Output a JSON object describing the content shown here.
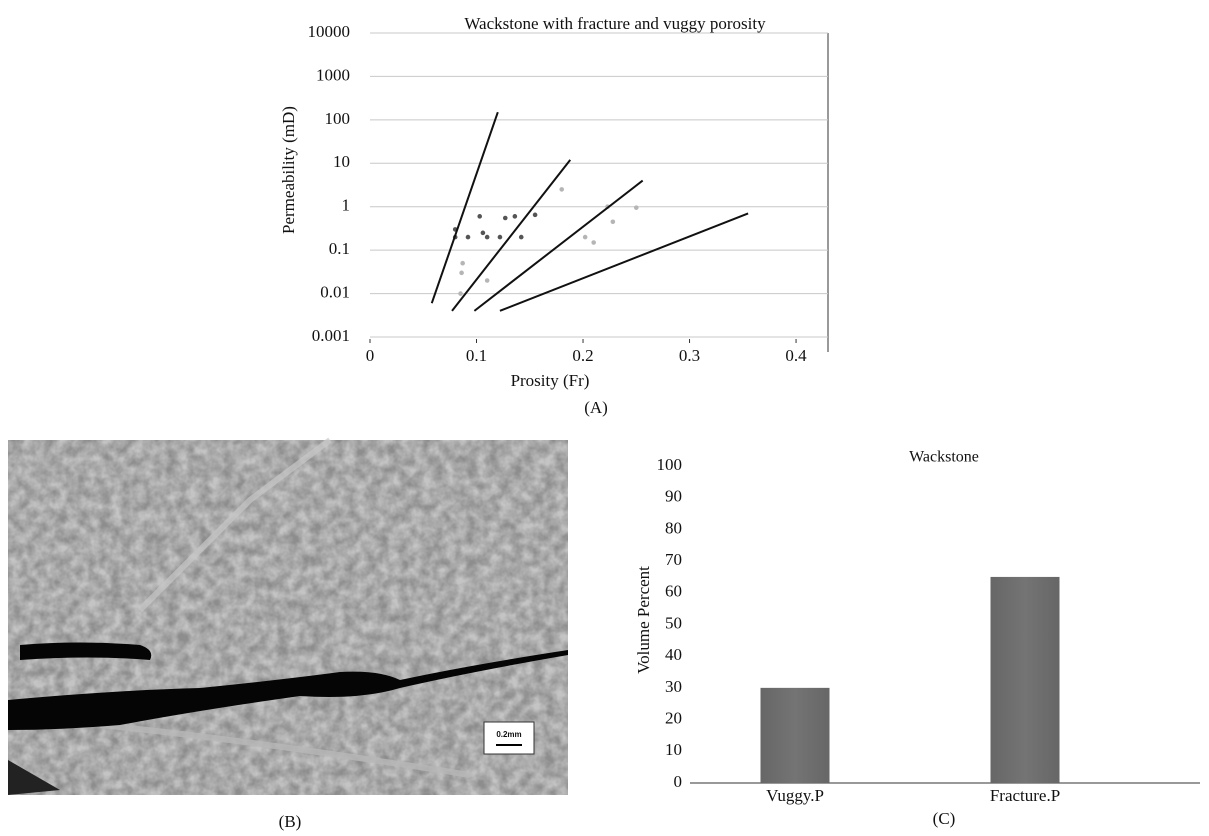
{
  "chart_data": [
    {
      "type": "scatter-lines",
      "title": "Wackstone with fracture and vuggy porosity",
      "x_label": "Prosity (Fr)",
      "y_label": "Permeability (mD)",
      "xlim": [
        0,
        0.43
      ],
      "xticks": [
        0,
        0.1,
        0.2,
        0.3,
        0.4
      ],
      "ylim": [
        0.001,
        10000
      ],
      "yticks": [
        0.001,
        0.01,
        0.1,
        1,
        10,
        100,
        1000,
        10000
      ],
      "log_y": true,
      "grid": true,
      "series": [
        {
          "type": "scatter",
          "color": "#555555",
          "x": [
            0.08,
            0.08,
            0.092,
            0.103,
            0.106,
            0.11,
            0.122,
            0.127,
            0.136,
            0.142,
            0.155
          ],
          "values": [
            0.3,
            0.2,
            0.2,
            0.6,
            0.25,
            0.2,
            0.2,
            0.55,
            0.6,
            0.2,
            0.65
          ]
        },
        {
          "type": "scatter",
          "color": "#b5b5b5",
          "x": [
            0.087,
            0.086,
            0.085,
            0.11,
            0.18,
            0.202,
            0.21,
            0.223,
            0.228,
            0.25
          ],
          "values": [
            0.05,
            0.03,
            0.01,
            0.02,
            2.5,
            0.2,
            0.15,
            1,
            0.45,
            0.95
          ]
        },
        {
          "type": "line",
          "color": "#111111",
          "x": [
            0.058,
            0.12
          ],
          "values": [
            0.006,
            150
          ]
        },
        {
          "type": "line",
          "color": "#111111",
          "x": [
            0.077,
            0.188
          ],
          "values": [
            0.004,
            12
          ]
        },
        {
          "type": "line",
          "color": "#111111",
          "x": [
            0.098,
            0.256
          ],
          "values": [
            0.004,
            4
          ]
        },
        {
          "type": "line",
          "color": "#111111",
          "x": [
            0.122,
            0.355
          ],
          "values": [
            0.004,
            0.7
          ]
        }
      ]
    },
    {
      "type": "bar",
      "title": "Wackstone",
      "y_label": "Volume Percent",
      "categories": [
        "Vuggy.P",
        "Fracture.P"
      ],
      "values": [
        30,
        65
      ],
      "color": "#6e6e6e",
      "ylim": [
        0,
        100
      ],
      "yticks": [
        0,
        10,
        20,
        30,
        40,
        50,
        60,
        70,
        80,
        90,
        100
      ],
      "grid": false
    }
  ],
  "figure": {
    "captions": [
      "(A)",
      "(B)",
      "(C)"
    ],
    "scale_bar": "0.2mm"
  }
}
